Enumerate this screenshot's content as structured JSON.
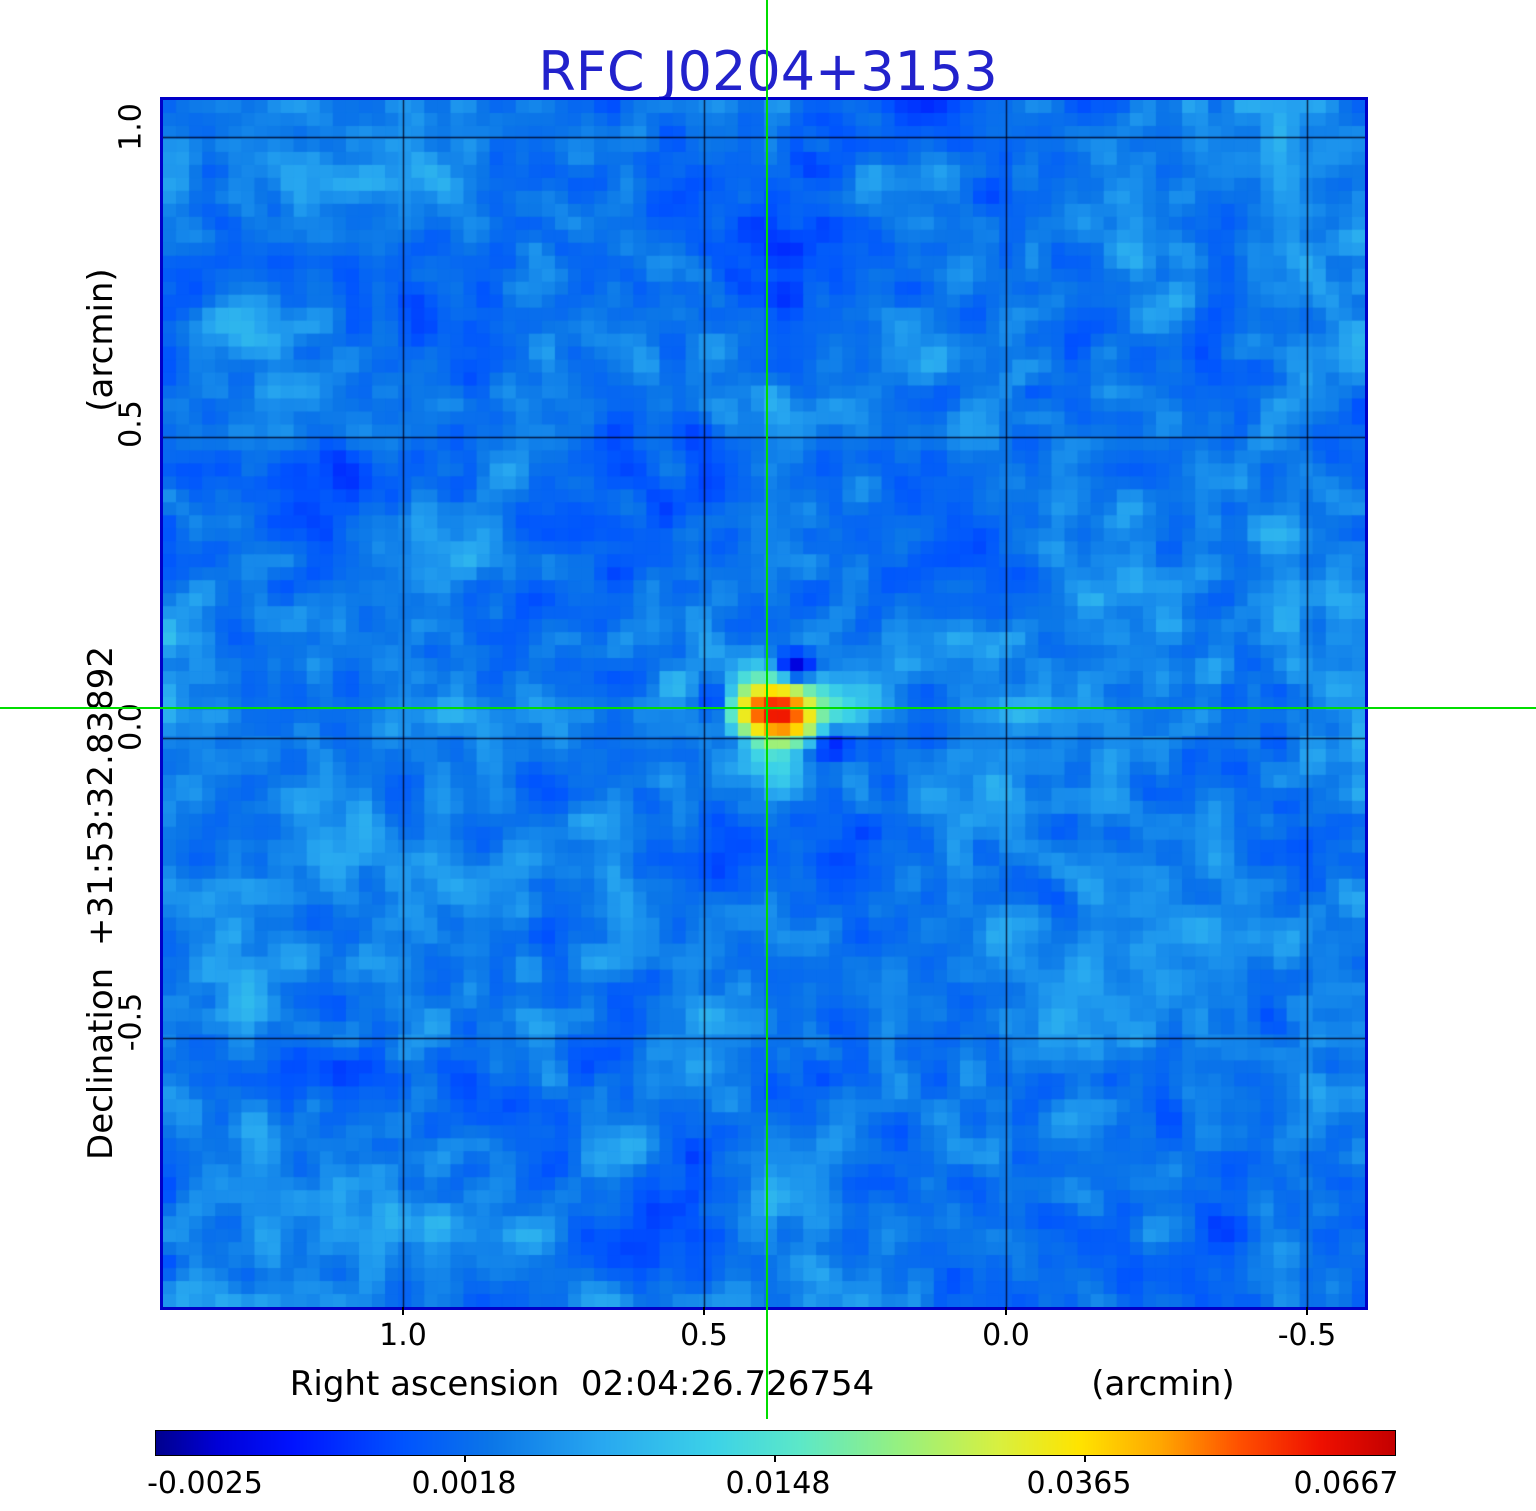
{
  "title": {
    "text": "RFC J0204+3153",
    "color": "#2222cc"
  },
  "axes": {
    "y": {
      "unit_label": "(arcmin)",
      "axis_label": "Declination  +31:53:32.83892",
      "ticks": [
        "1.0",
        "0.5",
        "0.0",
        "-0.5"
      ]
    },
    "x": {
      "axis_label": "Right ascension  02:04:26.726754",
      "unit_label": "(arcmin)",
      "ticks": [
        "1.0",
        "0.5",
        "0.0",
        "-0.5"
      ]
    }
  },
  "colorbar": {
    "tick_labels": [
      "-0.0025",
      "0.0018",
      "0.0148",
      "0.0365",
      "0.0667"
    ],
    "gradient_stops": [
      [
        0.0,
        "#00008f"
      ],
      [
        0.05,
        "#0000d8"
      ],
      [
        0.11,
        "#0013ff"
      ],
      [
        0.2,
        "#0054ff"
      ],
      [
        0.27,
        "#0b76e8"
      ],
      [
        0.36,
        "#28a8f0"
      ],
      [
        0.45,
        "#3cd2e8"
      ],
      [
        0.52,
        "#5ce8c8"
      ],
      [
        0.6,
        "#96f080"
      ],
      [
        0.68,
        "#d8f040"
      ],
      [
        0.745,
        "#ffe400"
      ],
      [
        0.81,
        "#ffa800"
      ],
      [
        0.875,
        "#ff5000"
      ],
      [
        0.94,
        "#ef1000"
      ],
      [
        1.0,
        "#c40000"
      ]
    ]
  },
  "crosshair": {
    "color": "#00dd00"
  },
  "map": {
    "frame_color": "#0000c8",
    "background_color_hint": "#0b76e8"
  },
  "chart_data": {
    "type": "heatmap",
    "title": "RFC J0204+3153",
    "xlabel": "Right ascension 02:04:26.726754 (arcmin)",
    "ylabel": "Declination +31:53:32.83892 (arcmin)",
    "x_ticks_arcmin": [
      1.0,
      0.5,
      0.0,
      -0.5
    ],
    "y_ticks_arcmin": [
      1.0,
      0.5,
      0.0,
      -0.5
    ],
    "xlim_arcmin": [
      1.41,
      -0.59
    ],
    "ylim_arcmin": [
      -0.97,
      1.06
    ],
    "x_axis_direction": "right-to-left (RA offset increases leftward)",
    "grid": true,
    "colorbar_tick_values": [
      -0.0025,
      0.0018,
      0.0148,
      0.0365,
      0.0667
    ],
    "colorbar_scale": "nonlinear asinh-like stretch, ticks evenly spaced along bar",
    "colormap": "jet-like (dark blue > blue > cyan > green > yellow > orange > red)",
    "source_peak": {
      "ra_offset_arcmin": 0.39,
      "dec_offset_arcmin": 0.05,
      "value": 0.0667
    },
    "crosshair_position": {
      "ra_offset_arcmin": 0.39,
      "dec_offset_arcmin": 0.05
    },
    "background_level": 0.0005,
    "features": [
      "single compact bright source at crosshair intersection",
      "negative sidelobes (dark navy patches) immediately around source",
      "faint radial streak artifacts from source (up-right light, down-left dark, up-left light, down-right dark)",
      "faint horizontal bright band along source row",
      "low-level blue mottled noise background, ~13px pixelation"
    ]
  }
}
